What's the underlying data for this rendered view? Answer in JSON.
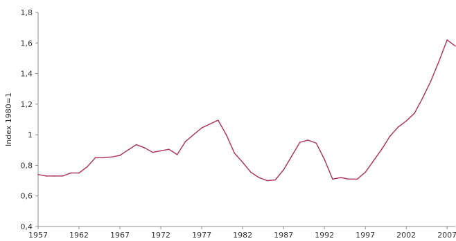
{
  "chart_data": {
    "type": "line",
    "title": "",
    "xlabel": "",
    "ylabel": "Index 1980=1",
    "xlim": [
      1957,
      2008
    ],
    "ylim": [
      0.4,
      1.8
    ],
    "grid": false,
    "line_color": "#b03a5e",
    "x_ticks": [
      {
        "value": 1957,
        "label": "1957"
      },
      {
        "value": 1962,
        "label": "1962"
      },
      {
        "value": 1967,
        "label": "1967"
      },
      {
        "value": 1972,
        "label": "1972"
      },
      {
        "value": 1977,
        "label": "1977"
      },
      {
        "value": 1982,
        "label": "1982"
      },
      {
        "value": 1987,
        "label": "1987"
      },
      {
        "value": 1992,
        "label": "1992"
      },
      {
        "value": 1997,
        "label": "1997"
      },
      {
        "value": 2002,
        "label": "2002"
      },
      {
        "value": 2007,
        "label": "2007"
      }
    ],
    "y_ticks": [
      {
        "value": 0.4,
        "label": "0,4"
      },
      {
        "value": 0.6,
        "label": "0,6"
      },
      {
        "value": 0.8,
        "label": "0,8"
      },
      {
        "value": 1.0,
        "label": "1"
      },
      {
        "value": 1.2,
        "label": "1,2"
      },
      {
        "value": 1.4,
        "label": "1,4"
      },
      {
        "value": 1.6,
        "label": "1,6"
      },
      {
        "value": 1.8,
        "label": "1,8"
      }
    ],
    "series": [
      {
        "x": [
          1957,
          1958,
          1959,
          1960,
          1961,
          1962,
          1963,
          1964,
          1965,
          1966,
          1967,
          1968,
          1969,
          1970,
          1971,
          1972,
          1973,
          1974,
          1975,
          1976,
          1977,
          1978,
          1979,
          1980,
          1981,
          1982,
          1983,
          1984,
          1985,
          1986,
          1987,
          1988,
          1989,
          1990,
          1991,
          1992,
          1993,
          1994,
          1995,
          1996,
          1997,
          1998,
          1999,
          2000,
          2001,
          2002,
          2003,
          2004,
          2005,
          2006,
          2007,
          2008
        ],
        "values": [
          0.74,
          0.73,
          0.73,
          0.73,
          0.75,
          0.75,
          0.79,
          0.85,
          0.85,
          0.855,
          0.865,
          0.9,
          0.935,
          0.915,
          0.885,
          0.895,
          0.905,
          0.87,
          0.955,
          1.0,
          1.045,
          1.07,
          1.095,
          1.0,
          0.88,
          0.82,
          0.755,
          0.72,
          0.7,
          0.705,
          0.77,
          0.86,
          0.95,
          0.965,
          0.945,
          0.84,
          0.71,
          0.72,
          0.71,
          0.71,
          0.755,
          0.83,
          0.905,
          0.99,
          1.05,
          1.09,
          1.14,
          1.24,
          1.35,
          1.48,
          1.62,
          1.58
        ]
      }
    ]
  }
}
